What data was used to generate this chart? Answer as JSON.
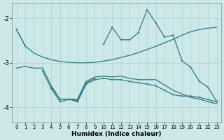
{
  "xlabel": "Humidex (Indice chaleur)",
  "bg_color": "#cce8e8",
  "line_color": "#2d7b7b",
  "grid_color": "#b8d8d8",
  "x": [
    0,
    1,
    2,
    3,
    4,
    5,
    6,
    7,
    8,
    9,
    10,
    11,
    12,
    13,
    14,
    15,
    16,
    17,
    18,
    19,
    20,
    21,
    22,
    23
  ],
  "line_diag1": [
    -2.25,
    -2.62,
    -2.78,
    -2.87,
    -2.93,
    -2.97,
    -2.99,
    -3.0,
    -3.0,
    -2.99,
    -2.96,
    -2.93,
    -2.88,
    -2.83,
    -2.77,
    -2.7,
    -2.63,
    -2.55,
    -2.47,
    -2.38,
    -2.3,
    -2.25,
    -2.22,
    -2.2
  ],
  "line_jagged": [
    -2.25,
    -2.62,
    null,
    null,
    null,
    null,
    null,
    null,
    null,
    null,
    -2.58,
    -2.2,
    -2.48,
    -2.48,
    -2.32,
    -1.8,
    -2.1,
    -2.42,
    -2.38,
    -2.95,
    -3.1,
    -3.42,
    -3.55,
    -3.88
  ],
  "line_flat1": [
    -3.12,
    -3.08,
    -3.12,
    -3.12,
    -3.52,
    -3.82,
    -3.82,
    -3.82,
    -3.42,
    -3.32,
    -3.3,
    -3.32,
    -3.3,
    -3.35,
    -3.38,
    -3.38,
    -3.38,
    -3.5,
    -3.62,
    -3.7,
    -3.78,
    -3.82,
    -3.88,
    -3.92
  ],
  "line_lower": [
    null,
    null,
    null,
    -3.18,
    -3.58,
    -3.88,
    -3.82,
    -3.88,
    -3.48,
    -3.38,
    -3.35,
    -3.38,
    -3.38,
    -3.42,
    -3.45,
    -3.48,
    -3.52,
    -3.62,
    -3.72,
    -3.75,
    -3.75,
    -3.78,
    -3.83,
    -3.88
  ],
  "line_jagged_markers": [
    null,
    null,
    null,
    null,
    -3.55,
    -3.82,
    -3.82,
    -3.85,
    -3.45,
    -3.35,
    null,
    null,
    null,
    null,
    null,
    null,
    null,
    null,
    null,
    null,
    null,
    null,
    null,
    null
  ],
  "ylim": [
    -4.35,
    -1.65
  ],
  "yticks": [
    -4,
    -3,
    -2
  ],
  "xlim": [
    -0.5,
    23.5
  ],
  "xticks": [
    0,
    1,
    2,
    3,
    4,
    5,
    6,
    7,
    8,
    9,
    10,
    11,
    12,
    13,
    14,
    15,
    16,
    17,
    18,
    19,
    20,
    21,
    22,
    23
  ]
}
